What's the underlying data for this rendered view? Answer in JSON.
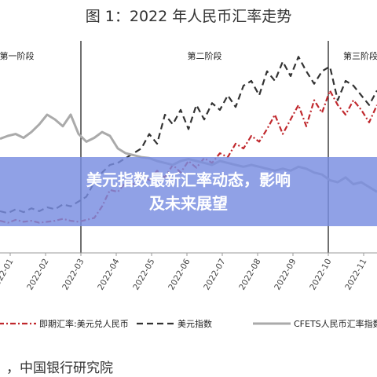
{
  "banner": {
    "line1": "美元指数最新汇率动态，影响",
    "line2": "及未来展望"
  },
  "source_text": "，中国银行研究院",
  "chart_data": {
    "type": "line",
    "title": "图 1：2022 年人民币汇率走势",
    "xlabel": "",
    "ylabel": "",
    "x_ticks": [
      "2022-01",
      "2022-02",
      "2022-03",
      "2022-04",
      "2022-05",
      "2022-06",
      "2022-07",
      "2022-08",
      "2022-09",
      "2022-10",
      "2022-11"
    ],
    "stages": [
      {
        "label": "第一阶段",
        "boundary_tick": "2022-03"
      },
      {
        "label": "第二阶段",
        "boundary_tick": "2022-10"
      },
      {
        "label": "第三阶段",
        "boundary_tick": null
      }
    ],
    "series": [
      {
        "name": "即期汇率:美元兑人民币",
        "color": "#c0282d",
        "style": "dash-dot",
        "values": [
          30,
          28,
          31,
          29,
          30,
          28,
          29,
          30,
          32,
          30,
          29,
          31,
          33,
          45,
          62,
          60,
          70,
          68,
          78,
          72,
          82,
          75,
          88,
          80,
          92,
          85,
          95,
          90,
          100,
          96,
          110,
          105,
          118,
          112,
          125,
          140,
          120,
          135,
          150,
          128,
          155,
          142,
          165,
          150,
          140,
          155,
          145,
          132,
          150
        ]
      },
      {
        "name": "美元指数",
        "color": "#333333",
        "style": "dash",
        "values": [
          40,
          38,
          42,
          39,
          43,
          40,
          44,
          42,
          47,
          45,
          50,
          55,
          70,
          80,
          88,
          90,
          95,
          100,
          105,
          120,
          110,
          140,
          130,
          145,
          125,
          150,
          135,
          152,
          145,
          160,
          148,
          170,
          175,
          160,
          185,
          175,
          195,
          180,
          200,
          185,
          172,
          185,
          190,
          155,
          175,
          170,
          160,
          150,
          165
        ]
      },
      {
        "name": "CFETS人民币汇率指数",
        "color": "#aaaaaa",
        "style": "solid",
        "values": [
          115,
          118,
          120,
          116,
          122,
          130,
          140,
          135,
          128,
          140,
          120,
          112,
          116,
          122,
          118,
          105,
          100,
          98,
          96,
          95,
          92,
          90,
          88,
          92,
          94,
          92,
          90,
          88,
          92,
          90,
          88,
          86,
          88,
          86,
          84,
          82,
          84,
          82,
          86,
          84,
          80,
          78,
          72,
          70,
          75,
          68,
          70,
          65,
          60
        ]
      }
    ],
    "value_range": [
      0,
      210
    ]
  },
  "colors": {
    "banner_bg": "#788ce1",
    "spot": "#c0282d",
    "dxy": "#333333",
    "cfets": "#aaaaaa"
  }
}
